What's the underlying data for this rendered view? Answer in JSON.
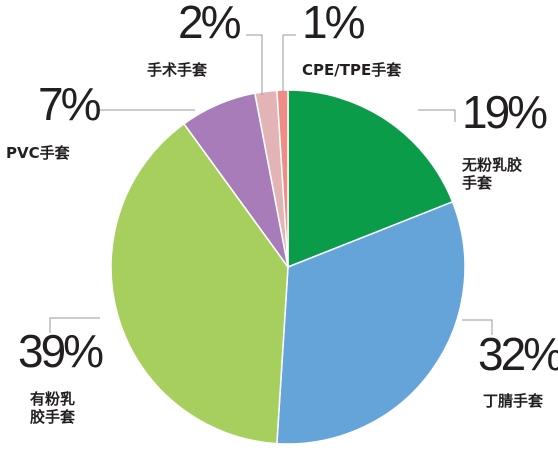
{
  "chart_data": {
    "type": "pie",
    "categories": [
      "无粉乳胶手套",
      "丁腈手套",
      "有粉乳胶手套",
      "PVC手套",
      "手术手套",
      "CPE/TPE手套"
    ],
    "values": [
      19,
      32,
      39,
      7,
      2,
      1
    ],
    "value_labels": [
      "19%",
      "32%",
      "39%",
      "7%",
      "2%",
      "1%"
    ],
    "colors": [
      "#0b9c4a",
      "#64a4d9",
      "#a7cf5d",
      "#a87cb8",
      "#e2b4b6",
      "#f18b85"
    ]
  }
}
